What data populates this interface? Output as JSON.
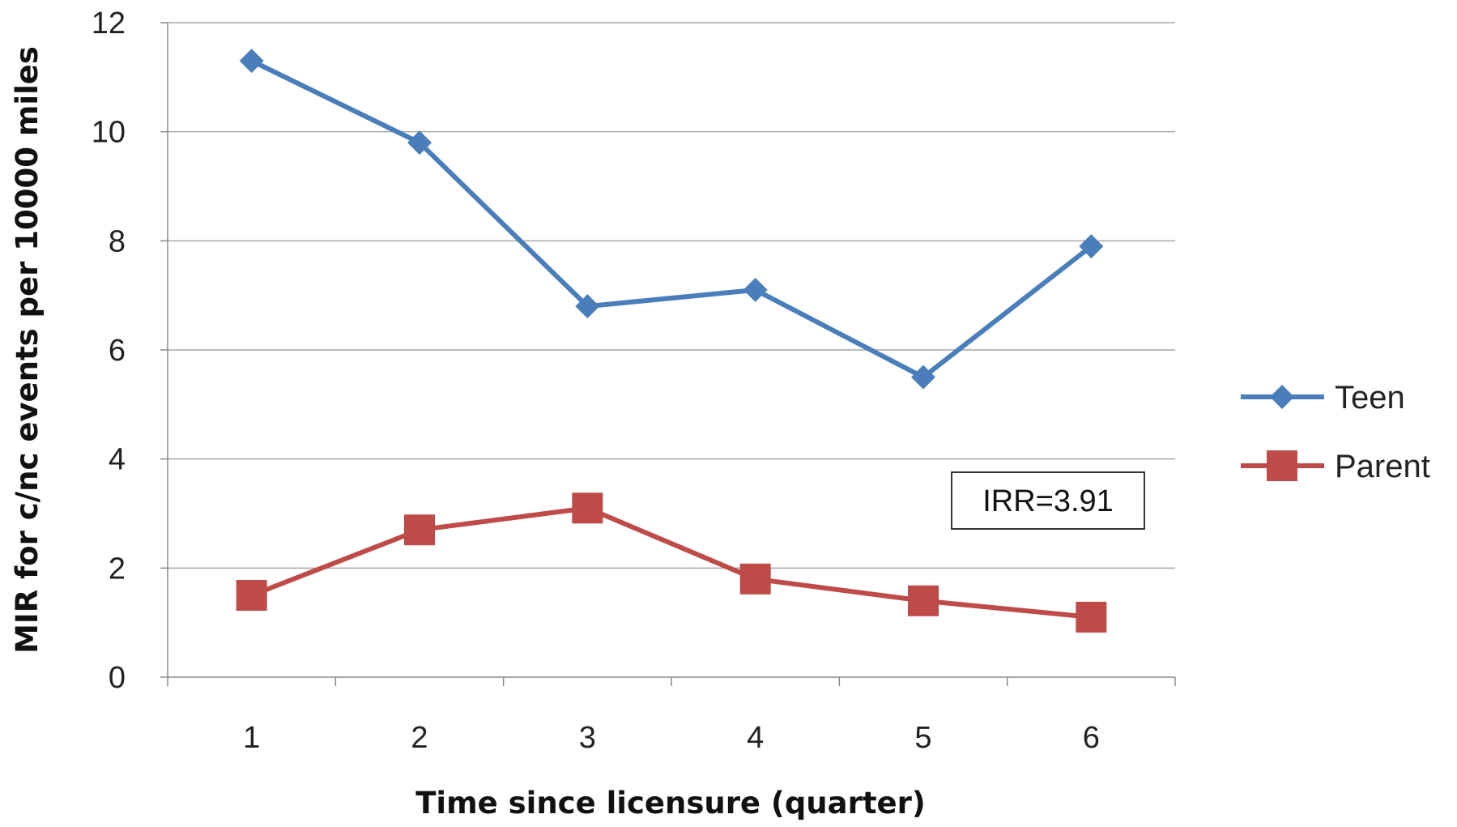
{
  "chart_data": {
    "type": "line",
    "categories": [
      "1",
      "2",
      "3",
      "4",
      "5",
      "6"
    ],
    "xlabel": "Time since licensure (quarter)",
    "ylabel": "MIR for c/nc events per 10000 miles",
    "ylim": [
      0,
      12
    ],
    "yticks": [
      "0",
      "2",
      "4",
      "6",
      "8",
      "10",
      "12"
    ],
    "grid": "horizontal",
    "legend_position": "right",
    "series": [
      {
        "name": "Teen",
        "values": [
          11.3,
          9.8,
          6.8,
          7.1,
          5.5,
          7.9
        ],
        "color": "#4a7ebb",
        "marker": "diamond"
      },
      {
        "name": "Parent",
        "values": [
          1.5,
          2.7,
          3.1,
          1.8,
          1.4,
          1.1
        ],
        "color": "#be4b48",
        "marker": "square"
      }
    ],
    "annotation": "IRR=3.91"
  }
}
